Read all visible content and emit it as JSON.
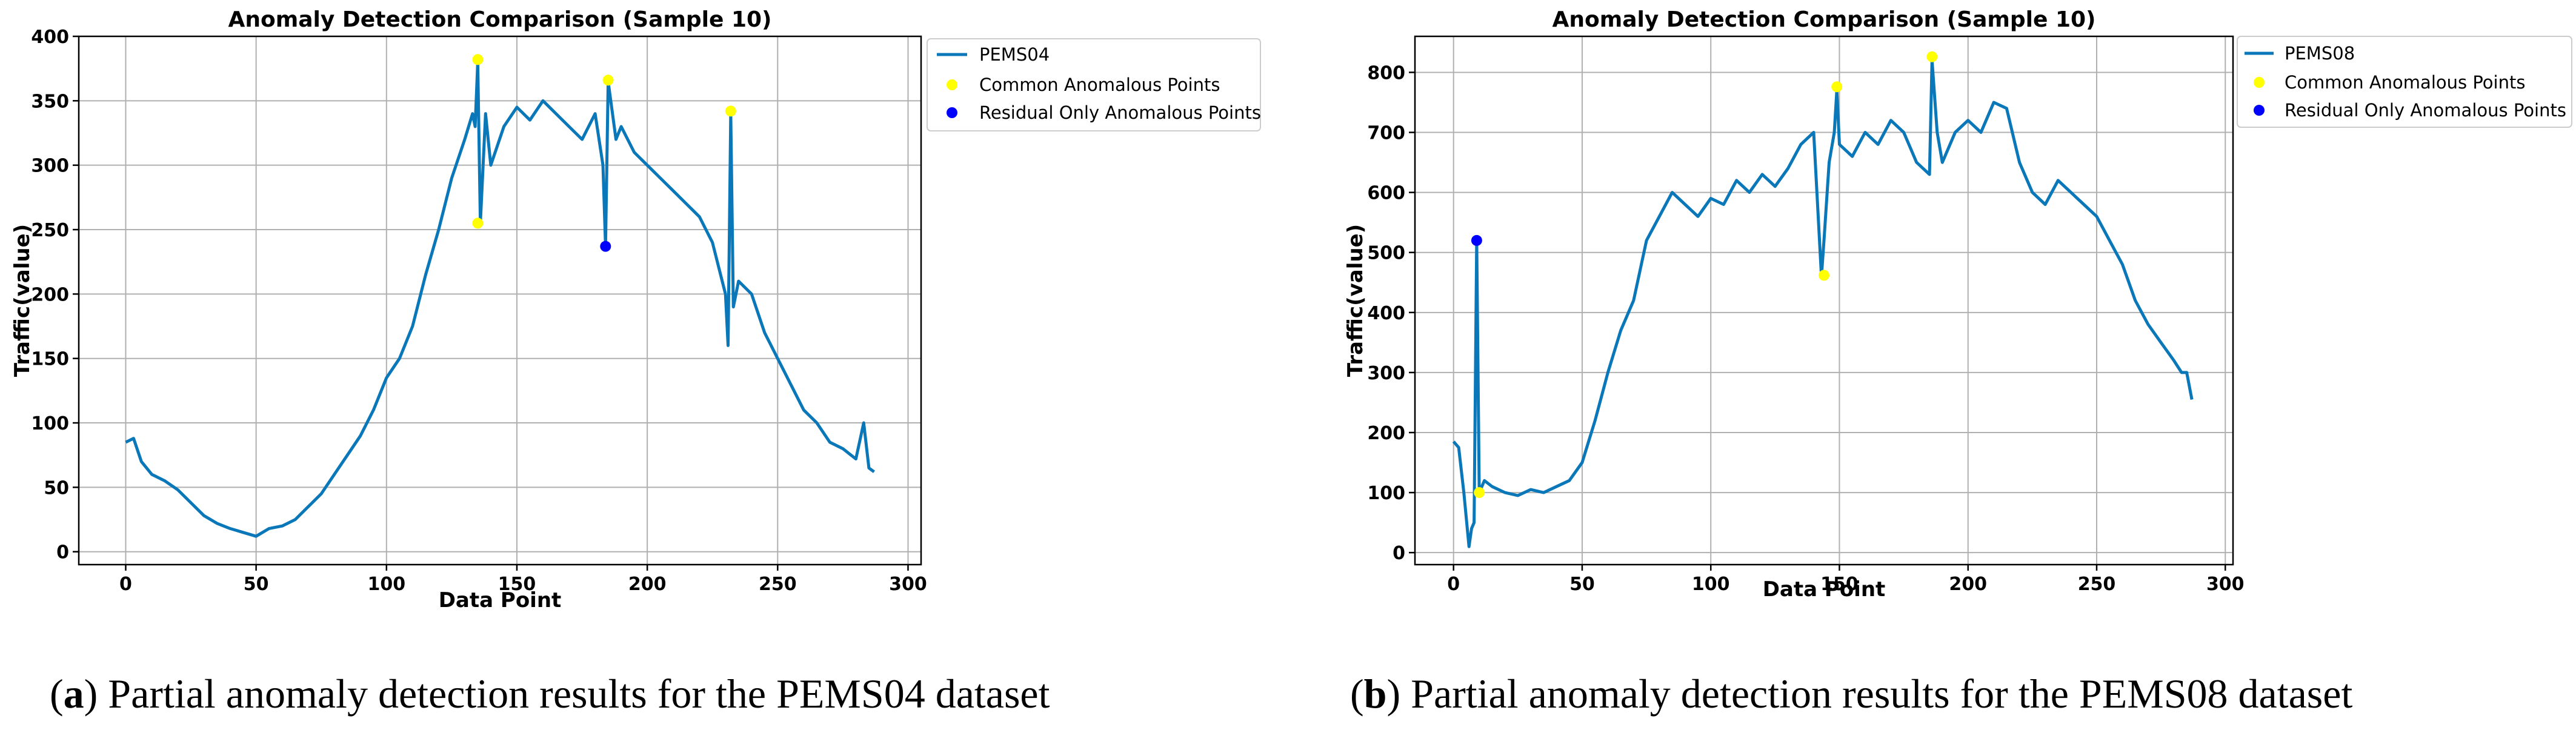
{
  "colors": {
    "line": "#0a77b8",
    "common": "#ffff00",
    "residual": "#0000ff"
  },
  "chart_data": [
    {
      "type": "line",
      "title": "Anomaly Detection Comparison (Sample 10)",
      "xlabel": "Data Point",
      "ylabel": "Traffic(value)",
      "xlim": [
        -18,
        305
      ],
      "ylim": [
        -10,
        400
      ],
      "xticks": [
        0,
        50,
        100,
        150,
        200,
        250,
        300
      ],
      "yticks": [
        0,
        50,
        100,
        150,
        200,
        250,
        300,
        350,
        400
      ],
      "grid": true,
      "legend_position": "outside-top-right",
      "legend": [
        "PEMS04",
        "Common Anomalous Points",
        "Residual Only Anomalous Points"
      ],
      "series": [
        {
          "name": "PEMS04",
          "x": [
            0,
            3,
            6,
            10,
            15,
            20,
            25,
            30,
            35,
            40,
            45,
            50,
            55,
            60,
            65,
            70,
            75,
            80,
            85,
            90,
            95,
            100,
            105,
            110,
            115,
            120,
            125,
            130,
            133,
            134,
            135,
            136,
            138,
            140,
            145,
            150,
            155,
            160,
            165,
            170,
            175,
            180,
            183,
            184,
            185,
            186,
            188,
            190,
            195,
            200,
            205,
            210,
            215,
            220,
            225,
            230,
            231,
            232,
            233,
            235,
            240,
            245,
            250,
            255,
            260,
            265,
            270,
            275,
            280,
            283,
            285,
            287
          ],
          "y": [
            85,
            88,
            70,
            60,
            55,
            48,
            38,
            28,
            22,
            18,
            15,
            12,
            18,
            20,
            25,
            35,
            45,
            60,
            75,
            90,
            110,
            135,
            150,
            175,
            215,
            250,
            290,
            320,
            340,
            330,
            380,
            255,
            340,
            300,
            330,
            345,
            335,
            350,
            340,
            330,
            320,
            340,
            300,
            237,
            365,
            350,
            320,
            330,
            310,
            300,
            290,
            280,
            270,
            260,
            240,
            200,
            160,
            340,
            190,
            210,
            200,
            170,
            150,
            130,
            110,
            100,
            85,
            80,
            72,
            100,
            65,
            62
          ]
        },
        {
          "name": "Common Anomalous Points",
          "x": [
            135,
            135,
            185,
            232
          ],
          "y": [
            382,
            255,
            366,
            342
          ]
        },
        {
          "name": "Residual Only Anomalous Points",
          "x": [
            184
          ],
          "y": [
            237
          ]
        }
      ]
    },
    {
      "type": "line",
      "title": "Anomaly Detection Comparison (Sample 10)",
      "xlabel": "Data Point",
      "ylabel": "Traffic(value)",
      "xlim": [
        -15,
        303
      ],
      "ylim": [
        -20,
        860
      ],
      "xticks": [
        0,
        50,
        100,
        150,
        200,
        250,
        300
      ],
      "yticks": [
        0,
        100,
        200,
        300,
        400,
        500,
        600,
        700,
        800
      ],
      "grid": true,
      "legend_position": "outside-top-right",
      "legend": [
        "PEMS08",
        "Common Anomalous Points",
        "Residual Only Anomalous Points"
      ],
      "series": [
        {
          "name": "PEMS08",
          "x": [
            0,
            2,
            4,
            6,
            7,
            8,
            9,
            10,
            12,
            15,
            20,
            25,
            30,
            35,
            40,
            45,
            50,
            55,
            60,
            65,
            70,
            75,
            80,
            85,
            90,
            95,
            100,
            105,
            110,
            115,
            120,
            125,
            130,
            135,
            140,
            143,
            144,
            146,
            148,
            149,
            150,
            155,
            160,
            165,
            170,
            175,
            180,
            185,
            186,
            188,
            190,
            195,
            200,
            205,
            210,
            215,
            220,
            225,
            230,
            235,
            240,
            245,
            250,
            255,
            260,
            265,
            270,
            275,
            280,
            283,
            285,
            287
          ],
          "y": [
            185,
            175,
            100,
            10,
            40,
            50,
            520,
            100,
            120,
            110,
            100,
            95,
            105,
            100,
            110,
            120,
            150,
            220,
            300,
            370,
            420,
            520,
            560,
            600,
            580,
            560,
            590,
            580,
            620,
            600,
            630,
            610,
            640,
            680,
            700,
            460,
            520,
            650,
            700,
            770,
            680,
            660,
            700,
            680,
            720,
            700,
            650,
            630,
            820,
            700,
            650,
            700,
            720,
            700,
            750,
            740,
            650,
            600,
            580,
            620,
            600,
            580,
            560,
            520,
            480,
            420,
            380,
            350,
            320,
            300,
            300,
            255
          ]
        },
        {
          "name": "Common Anomalous Points",
          "x": [
            10,
            144,
            149,
            186
          ],
          "y": [
            100,
            462,
            776,
            826
          ]
        },
        {
          "name": "Residual Only Anomalous Points",
          "x": [
            9
          ],
          "y": [
            520
          ]
        }
      ]
    }
  ],
  "captions": [
    {
      "label": "a",
      "text": ") Partial anomaly detection results for the PEMS04 dataset",
      "open": "("
    },
    {
      "label": "b",
      "text": ") Partial anomaly detection results for the PEMS08 dataset",
      "open": "("
    }
  ]
}
